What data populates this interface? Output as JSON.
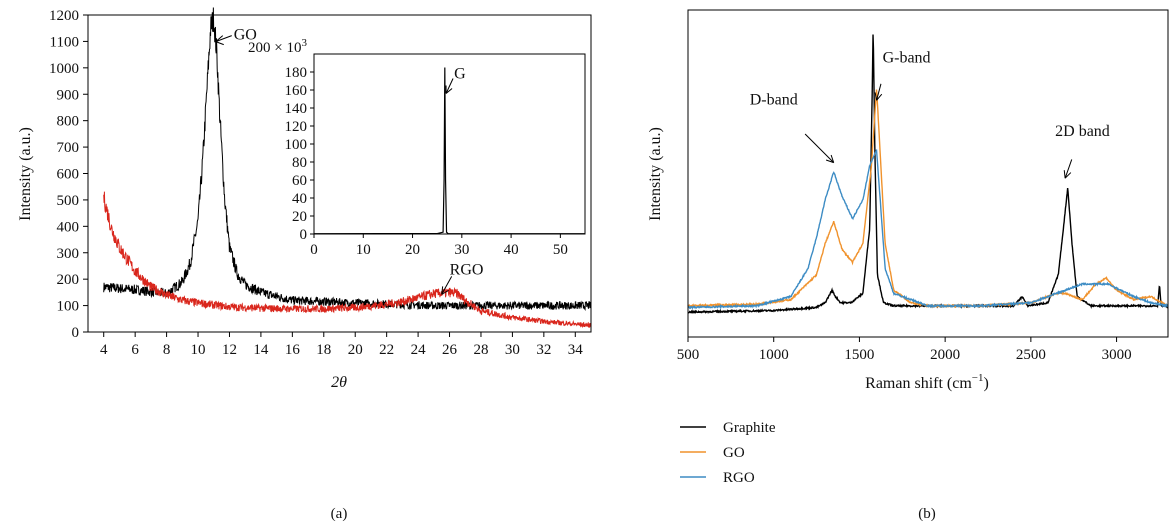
{
  "chart_data": [
    {
      "type": "line",
      "panel_label": "(a)",
      "xlabel": "2θ",
      "ylabel": "Intensity (a.u.)",
      "xlim": [
        3,
        35
      ],
      "ylim": [
        0,
        1200
      ],
      "x_ticks": [
        4,
        6,
        8,
        10,
        12,
        14,
        16,
        18,
        20,
        22,
        24,
        26,
        28,
        30,
        32,
        34
      ],
      "y_ticks": [
        0,
        100,
        200,
        300,
        400,
        500,
        600,
        700,
        800,
        900,
        1000,
        1100,
        1200
      ],
      "grid": false,
      "annotations": [
        {
          "text": "GO",
          "x": 11.0,
          "y": 1190
        },
        {
          "text": "RGO",
          "x": 25.5,
          "y": 150
        }
      ],
      "series": [
        {
          "color": "#000000",
          "x": [
            4,
            6,
            8,
            9,
            9.5,
            10,
            10.3,
            10.6,
            10.8,
            11,
            11.2,
            11.4,
            11.7,
            12,
            12.5,
            13,
            14,
            16,
            20,
            25,
            30,
            35
          ],
          "y": [
            170,
            160,
            145,
            190,
            260,
            420,
            650,
            950,
            1150,
            1190,
            1050,
            800,
            500,
            320,
            220,
            180,
            150,
            120,
            110,
            100,
            100,
            100
          ]
        },
        {
          "color": "#d9261c",
          "x": [
            4,
            4.5,
            5,
            6,
            7,
            8,
            9,
            10,
            12,
            14,
            16,
            18,
            20,
            22,
            23,
            24,
            25,
            26,
            26.5,
            27,
            28,
            30,
            32,
            35
          ],
          "y": [
            510,
            390,
            320,
            230,
            170,
            140,
            120,
            110,
            95,
            90,
            88,
            88,
            92,
            105,
            115,
            130,
            145,
            150,
            145,
            120,
            80,
            55,
            40,
            25
          ]
        }
      ],
      "inset": {
        "type": "line",
        "multiplier_label": "200 × 10",
        "multiplier_exp": "3",
        "xlim": [
          0,
          55
        ],
        "ylim": [
          0,
          200
        ],
        "x_ticks": [
          0,
          10,
          20,
          30,
          40,
          50
        ],
        "y_ticks": [
          0,
          20,
          40,
          60,
          80,
          100,
          120,
          140,
          160,
          180
        ],
        "annotations": [
          {
            "text": "G",
            "x": 26.6,
            "y": 155
          }
        ],
        "series": [
          {
            "color": "#000000",
            "x": [
              0,
              25,
              26.2,
              26.4,
              26.55,
              26.7,
              26.9,
              27.2,
              30,
              55
            ],
            "y": [
              0.3,
              0.5,
              2,
              60,
              185,
              60,
              2,
              0.5,
              0.3,
              0.3
            ]
          }
        ]
      }
    },
    {
      "type": "line",
      "panel_label": "(b)",
      "xlabel": "Raman shift (cm",
      "xlabel_sup": "−1",
      "xlabel_tail": ")",
      "ylabel": "Intensity (a.u.)",
      "xlim": [
        500,
        3300
      ],
      "ylim": [
        0,
        1.05
      ],
      "x_ticks": [
        500,
        1000,
        1500,
        2000,
        2500,
        3000
      ],
      "grid": false,
      "legend_position": "bottom-left",
      "annotations": [
        {
          "text": "D-band",
          "x": 1350,
          "y": 0.56
        },
        {
          "text": "G-band",
          "x": 1600,
          "y": 0.76
        },
        {
          "text": "2D band",
          "x": 2700,
          "y": 0.51
        }
      ],
      "series": [
        {
          "name": "Graphite",
          "color": "#000000",
          "x": [
            500,
            1000,
            1250,
            1300,
            1340,
            1360,
            1390,
            1450,
            1520,
            1560,
            1575,
            1580,
            1590,
            1605,
            1640,
            1700,
            2000,
            2400,
            2450,
            2480,
            2600,
            2660,
            2690,
            2715,
            2740,
            2770,
            2850,
            3000,
            3200,
            3240,
            3250,
            3260,
            3300
          ],
          "y": [
            0.08,
            0.085,
            0.095,
            0.11,
            0.15,
            0.13,
            0.11,
            0.11,
            0.14,
            0.35,
            0.8,
            1.0,
            0.6,
            0.2,
            0.11,
            0.1,
            0.1,
            0.1,
            0.13,
            0.1,
            0.11,
            0.2,
            0.35,
            0.48,
            0.3,
            0.13,
            0.1,
            0.1,
            0.1,
            0.1,
            0.17,
            0.1,
            0.1
          ]
        },
        {
          "name": "GO",
          "color": "#f0922c",
          "x": [
            500,
            900,
            1100,
            1250,
            1300,
            1350,
            1400,
            1460,
            1520,
            1570,
            1600,
            1620,
            1650,
            1700,
            1800,
            1900,
            2200,
            2500,
            2650,
            2700,
            2800,
            2880,
            2940,
            3000,
            3100,
            3200,
            3300
          ],
          "y": [
            0.1,
            0.105,
            0.12,
            0.2,
            0.3,
            0.37,
            0.28,
            0.24,
            0.3,
            0.55,
            0.8,
            0.6,
            0.3,
            0.15,
            0.11,
            0.1,
            0.1,
            0.11,
            0.14,
            0.14,
            0.12,
            0.17,
            0.19,
            0.15,
            0.12,
            0.13,
            0.1
          ]
        },
        {
          "name": "RGO",
          "color": "#3d8cc4",
          "x": [
            500,
            900,
            1100,
            1200,
            1250,
            1300,
            1350,
            1400,
            1460,
            1520,
            1560,
            1600,
            1620,
            1650,
            1700,
            1800,
            1900,
            2200,
            2500,
            2650,
            2800,
            2950,
            3100,
            3200,
            3300
          ],
          "y": [
            0.095,
            0.1,
            0.13,
            0.22,
            0.32,
            0.44,
            0.53,
            0.45,
            0.38,
            0.44,
            0.55,
            0.6,
            0.45,
            0.22,
            0.14,
            0.12,
            0.1,
            0.1,
            0.11,
            0.14,
            0.17,
            0.17,
            0.13,
            0.11,
            0.1
          ]
        }
      ]
    }
  ]
}
